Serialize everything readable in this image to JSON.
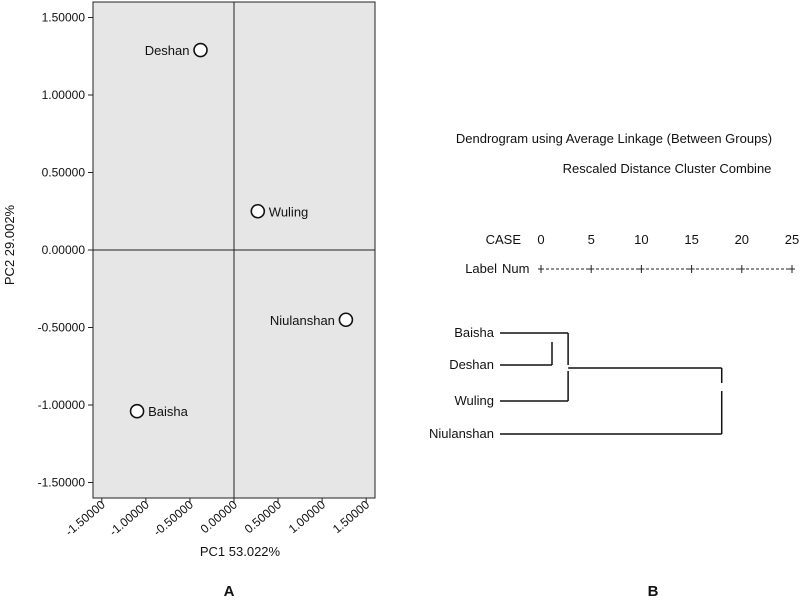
{
  "chart_data": [
    {
      "type": "scatter",
      "panel_label": "A",
      "xlabel": "PC1 53.022%",
      "ylabel": "PC2 29.002%",
      "xlim": [
        -1.6,
        1.6
      ],
      "ylim": [
        -1.6,
        1.6
      ],
      "x_ticks": [
        -1.5,
        -1.0,
        -0.5,
        0.0,
        0.5,
        1.0,
        1.5
      ],
      "y_ticks": [
        1.5,
        1.0,
        0.5,
        0.0,
        -0.5,
        -1.0,
        -1.5
      ],
      "x_tick_labels": [
        "-1.50000",
        "-1.00000",
        "-0.50000",
        "0.00000",
        "0.50000",
        "1.00000",
        "1.50000"
      ],
      "y_tick_labels": [
        "1.50000",
        "1.00000",
        "0.50000",
        "0.00000",
        "-0.50000",
        "-1.00000",
        "-1.50000"
      ],
      "background": "#e6e6e6",
      "points": [
        {
          "name": "Deshan",
          "x": -0.38,
          "y": 1.29,
          "label_side": "left"
        },
        {
          "name": "Wuling",
          "x": 0.27,
          "y": 0.25,
          "label_side": "right"
        },
        {
          "name": "Niulanshan",
          "x": 1.27,
          "y": -0.45,
          "label_side": "left"
        },
        {
          "name": "Baisha",
          "x": -1.1,
          "y": -1.04,
          "label_side": "right"
        }
      ]
    },
    {
      "type": "dendrogram",
      "panel_label": "B",
      "title": "Dendrogram using Average Linkage (Between Groups)",
      "subtitle": "Rescaled Distance Cluster Combine",
      "case_label": "CASE",
      "label_header": "Label",
      "num_header": "Num",
      "scale_ticks": [
        0,
        5,
        10,
        15,
        20,
        25
      ],
      "leaves": [
        "Baisha",
        "Deshan",
        "Wuling",
        "Niulanshan"
      ],
      "merges": [
        {
          "a": "Baisha",
          "b": "Deshan",
          "distance": 0
        },
        {
          "a": "Baisha-Deshan",
          "b": "Wuling",
          "distance": 2.7
        },
        {
          "a": "Baisha-Deshan-Wuling",
          "b": "Niulanshan",
          "distance": 18
        }
      ]
    }
  ]
}
